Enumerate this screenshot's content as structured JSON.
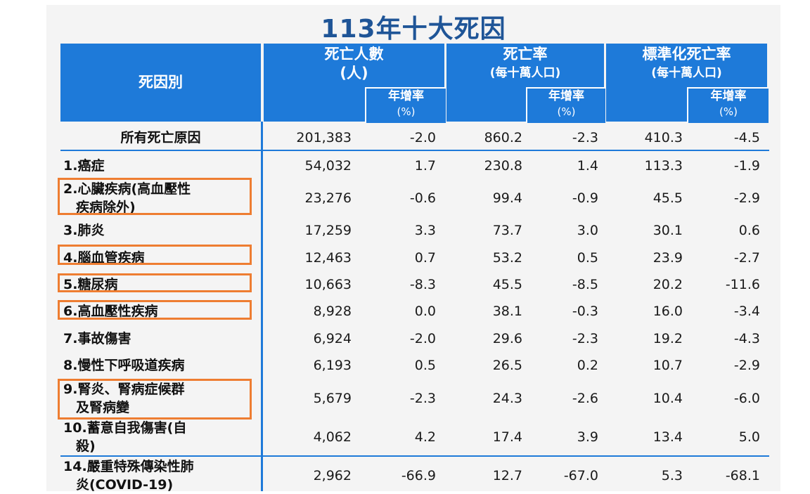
{
  "title": "113年十大死因",
  "headers": {
    "cause": "死因別",
    "deaths_main": "死亡人數",
    "deaths_unit": "(人)",
    "rate_main": "死亡率",
    "rate_unit": "(每十萬人口)",
    "std_main": "標準化死亡率",
    "std_unit": "(每十萬人口)",
    "growth_label": "年增率",
    "growth_unit": "(%)"
  },
  "total_row": {
    "name": "所有死亡原因",
    "deaths": "201,383",
    "deaths_growth": "-2.0",
    "rate": "860.2",
    "rate_growth": "-2.3",
    "std": "410.3",
    "std_growth": "-4.5"
  },
  "rows": [
    {
      "name_lines": [
        "1.癌症"
      ],
      "deaths": "54,032",
      "deaths_growth": "1.7",
      "rate": "230.8",
      "rate_growth": "1.4",
      "std": "113.3",
      "std_growth": "-1.9",
      "highlight": false
    },
    {
      "name_lines": [
        "2.心臟疾病(高血壓性",
        "疾病除外)"
      ],
      "deaths": "23,276",
      "deaths_growth": "-0.6",
      "rate": "99.4",
      "rate_growth": "-0.9",
      "std": "45.5",
      "std_growth": "-2.9",
      "highlight": true
    },
    {
      "name_lines": [
        "3.肺炎"
      ],
      "deaths": "17,259",
      "deaths_growth": "3.3",
      "rate": "73.7",
      "rate_growth": "3.0",
      "std": "30.1",
      "std_growth": "0.6",
      "highlight": false
    },
    {
      "name_lines": [
        "4.腦血管疾病"
      ],
      "deaths": "12,463",
      "deaths_growth": "0.7",
      "rate": "53.2",
      "rate_growth": "0.5",
      "std": "23.9",
      "std_growth": "-2.7",
      "highlight": true
    },
    {
      "name_lines": [
        "5.糖尿病"
      ],
      "deaths": "10,663",
      "deaths_growth": "-8.3",
      "rate": "45.5",
      "rate_growth": "-8.5",
      "std": "20.2",
      "std_growth": "-11.6",
      "highlight": true
    },
    {
      "name_lines": [
        "6.高血壓性疾病"
      ],
      "deaths": "8,928",
      "deaths_growth": "0.0",
      "rate": "38.1",
      "rate_growth": "-0.3",
      "std": "16.0",
      "std_growth": "-3.4",
      "highlight": true
    },
    {
      "name_lines": [
        "7.事故傷害"
      ],
      "deaths": "6,924",
      "deaths_growth": "-2.0",
      "rate": "29.6",
      "rate_growth": "-2.3",
      "std": "19.2",
      "std_growth": "-4.3",
      "highlight": false
    },
    {
      "name_lines": [
        "8.慢性下呼吸道疾病"
      ],
      "deaths": "6,193",
      "deaths_growth": "0.5",
      "rate": "26.5",
      "rate_growth": "0.2",
      "std": "10.7",
      "std_growth": "-2.9",
      "highlight": false
    },
    {
      "name_lines": [
        "9.腎炎、腎病症候群",
        "及腎病變"
      ],
      "deaths": "5,679",
      "deaths_growth": "-2.3",
      "rate": "24.3",
      "rate_growth": "-2.6",
      "std": "10.4",
      "std_growth": "-6.0",
      "highlight": true
    },
    {
      "name_lines": [
        "10.蓄意自我傷害(自",
        "殺)"
      ],
      "deaths": "4,062",
      "deaths_growth": "4.2",
      "rate": "17.4",
      "rate_growth": "3.9",
      "std": "13.4",
      "std_growth": "5.0",
      "highlight": false
    },
    {
      "name_lines": [
        "14.嚴重特殊傳染性肺",
        "炎(COVID-19)"
      ],
      "deaths": "2,962",
      "deaths_growth": "-66.9",
      "rate": "12.7",
      "rate_growth": "-67.0",
      "std": "5.3",
      "std_growth": "-68.1",
      "highlight": false
    }
  ],
  "colors": {
    "header_bg": "#1e7ad9",
    "title": "#1f5597",
    "highlight_border": "#ee7d31",
    "panel_bg": "#f4f4f4"
  }
}
